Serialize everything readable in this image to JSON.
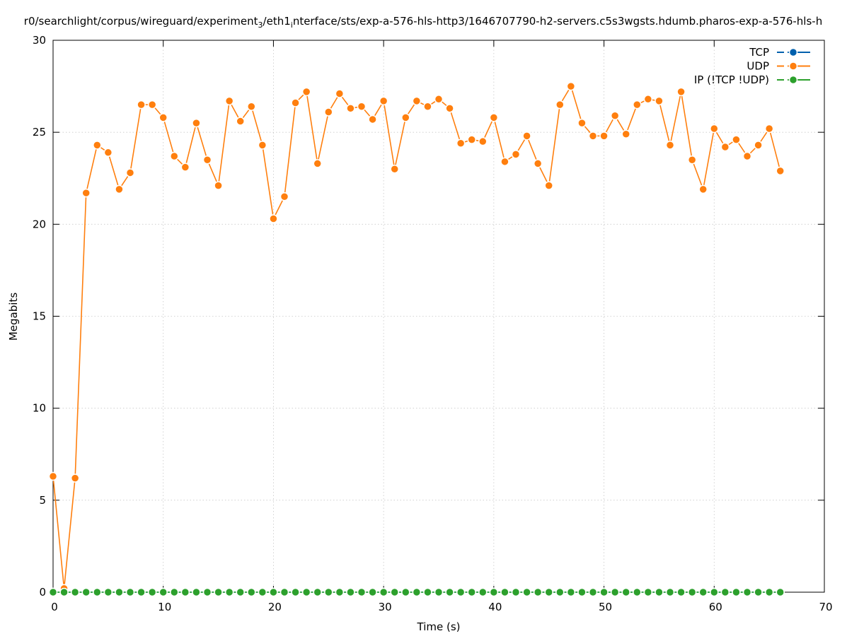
{
  "chart_data": {
    "type": "line",
    "title_prefix": "r0/searchlight/corpus/wireguard/experiment",
    "title_sub1": "3",
    "title_mid": "/eth1",
    "title_sub2": "i",
    "title_suffix": "nterface/sts/exp-a-576-hls-http3/1646707790-h2-servers.c5s3wgsts.hdumb.pharos-exp-a-576-hls-h",
    "xlabel": "Time (s)",
    "ylabel": "Megabits",
    "xlim": [
      0,
      70
    ],
    "ylim": [
      0,
      30
    ],
    "xticks": [
      0,
      10,
      20,
      30,
      40,
      50,
      60,
      70
    ],
    "yticks": [
      0,
      5,
      10,
      15,
      20,
      25,
      30
    ],
    "grid": true,
    "legend_position": "top-right",
    "x": [
      0,
      1,
      2,
      3,
      4,
      5,
      6,
      7,
      8,
      9,
      10,
      11,
      12,
      13,
      14,
      15,
      16,
      17,
      18,
      19,
      20,
      21,
      22,
      23,
      24,
      25,
      26,
      27,
      28,
      29,
      30,
      31,
      32,
      33,
      34,
      35,
      36,
      37,
      38,
      39,
      40,
      41,
      42,
      43,
      44,
      45,
      46,
      47,
      48,
      49,
      50,
      51,
      52,
      53,
      54,
      55,
      56,
      57,
      58,
      59,
      60,
      61,
      62,
      63,
      64,
      65,
      66
    ],
    "series": [
      {
        "name": "TCP",
        "color": "#0060ad",
        "values": [
          0,
          0,
          0,
          0,
          0,
          0,
          0,
          0,
          0,
          0,
          0,
          0,
          0,
          0,
          0,
          0,
          0,
          0,
          0,
          0,
          0,
          0,
          0,
          0,
          0,
          0,
          0,
          0,
          0,
          0,
          0,
          0,
          0,
          0,
          0,
          0,
          0,
          0,
          0,
          0,
          0,
          0,
          0,
          0,
          0,
          0,
          0,
          0,
          0,
          0,
          0,
          0,
          0,
          0,
          0,
          0,
          0,
          0,
          0,
          0,
          0,
          0,
          0,
          0,
          0,
          0,
          0
        ]
      },
      {
        "name": "UDP",
        "color": "#ff7f0e",
        "values": [
          6.3,
          0.2,
          6.2,
          21.7,
          24.3,
          23.9,
          21.9,
          22.8,
          26.5,
          26.5,
          25.8,
          23.7,
          23.1,
          25.5,
          23.5,
          22.1,
          26.7,
          25.6,
          26.4,
          24.3,
          20.3,
          21.5,
          26.6,
          27.2,
          23.3,
          26.1,
          27.1,
          26.3,
          26.4,
          25.7,
          26.7,
          23.0,
          25.8,
          26.7,
          26.4,
          26.8,
          26.3,
          24.4,
          24.6,
          24.5,
          25.8,
          23.4,
          23.8,
          24.8,
          23.3,
          22.1,
          26.5,
          27.5,
          25.5,
          24.8,
          24.8,
          25.9,
          24.9,
          26.5,
          26.8,
          26.7,
          24.3,
          27.2,
          23.5,
          21.9,
          25.2,
          24.2,
          24.6,
          23.7,
          24.3,
          25.2,
          22.9
        ]
      },
      {
        "name": "IP (!TCP  !UDP)",
        "color": "#2ca02c",
        "values": [
          0,
          0,
          0,
          0,
          0,
          0,
          0,
          0,
          0,
          0,
          0,
          0,
          0,
          0,
          0,
          0,
          0,
          0,
          0,
          0,
          0,
          0,
          0,
          0,
          0,
          0,
          0,
          0,
          0,
          0,
          0,
          0,
          0,
          0,
          0,
          0,
          0,
          0,
          0,
          0,
          0,
          0,
          0,
          0,
          0,
          0,
          0,
          0,
          0,
          0,
          0,
          0,
          0,
          0,
          0,
          0,
          0,
          0,
          0,
          0,
          0,
          0,
          0,
          0,
          0,
          0,
          0
        ]
      }
    ]
  }
}
